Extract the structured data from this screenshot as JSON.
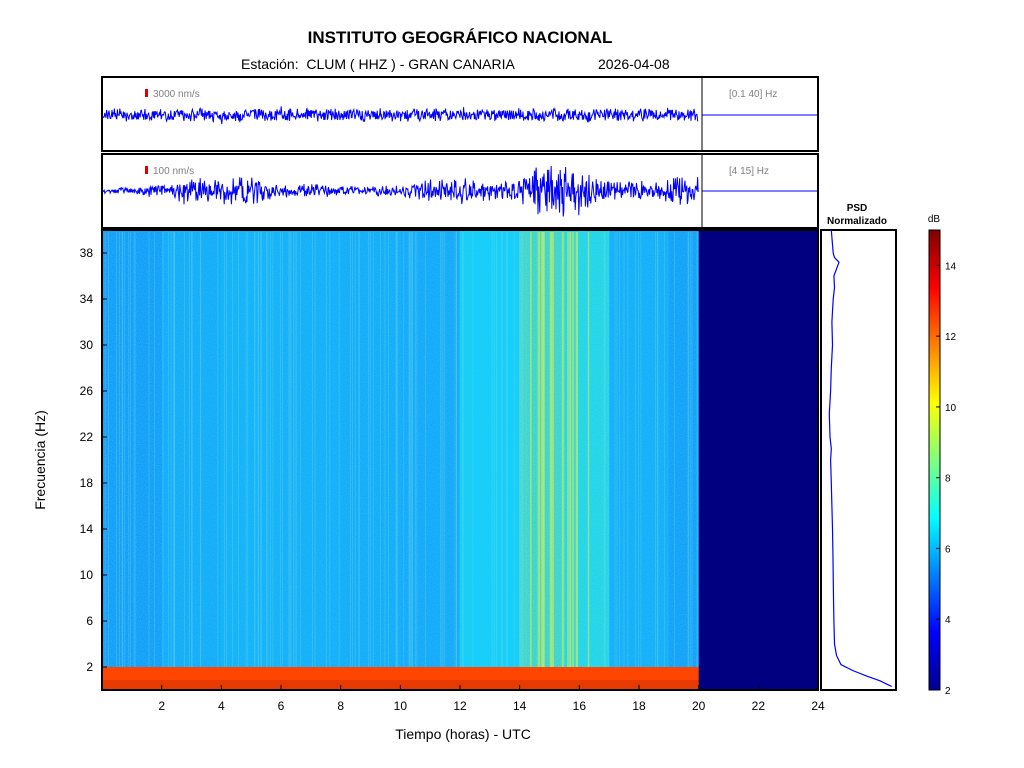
{
  "header": {
    "title": "INSTITUTO GEOGRÁFICO NACIONAL",
    "station_line": "Estación:  CLUM ( HHZ ) - GRAN CANARIA",
    "date": "2026-04-08"
  },
  "chart_data": [
    {
      "type": "line",
      "panel": "seismogram-broadband",
      "scale_label": "3000 nm/s",
      "band_label": "[0.1 40] Hz",
      "data_end_hour": 20,
      "x_range": [
        0,
        24
      ],
      "scale_bar_color": "#e00000",
      "trace_color": "#0000ff"
    },
    {
      "type": "line",
      "panel": "seismogram-filtered",
      "scale_label": "100 nm/s",
      "band_label": "[4 15] Hz",
      "data_end_hour": 20,
      "x_range": [
        0,
        24
      ],
      "amplitude_envelope": [
        {
          "x": 0.0,
          "y": 0.08
        },
        {
          "x": 1.0,
          "y": 0.1
        },
        {
          "x": 2.0,
          "y": 0.25
        },
        {
          "x": 3.0,
          "y": 0.45
        },
        {
          "x": 4.0,
          "y": 0.4
        },
        {
          "x": 5.0,
          "y": 0.5
        },
        {
          "x": 6.0,
          "y": 0.2
        },
        {
          "x": 7.0,
          "y": 0.22
        },
        {
          "x": 8.0,
          "y": 0.18
        },
        {
          "x": 9.0,
          "y": 0.15
        },
        {
          "x": 10.0,
          "y": 0.18
        },
        {
          "x": 11.0,
          "y": 0.35
        },
        {
          "x": 12.0,
          "y": 0.4
        },
        {
          "x": 13.0,
          "y": 0.3
        },
        {
          "x": 14.0,
          "y": 0.45
        },
        {
          "x": 14.8,
          "y": 1.0
        },
        {
          "x": 15.5,
          "y": 0.9
        },
        {
          "x": 16.2,
          "y": 0.7
        },
        {
          "x": 17.0,
          "y": 0.3
        },
        {
          "x": 18.0,
          "y": 0.3
        },
        {
          "x": 19.0,
          "y": 0.35
        },
        {
          "x": 19.6,
          "y": 0.55
        },
        {
          "x": 20.0,
          "y": 0.4
        }
      ]
    },
    {
      "type": "heatmap",
      "panel": "spectrogram",
      "xlabel": "Tiempo (horas) - UTC",
      "ylabel": "Frecuencia  (Hz)",
      "x_range": [
        0,
        24
      ],
      "y_range": [
        0,
        40
      ],
      "x_ticks": [
        2,
        4,
        6,
        8,
        10,
        12,
        14,
        16,
        18,
        20,
        22,
        24
      ],
      "y_ticks": [
        2,
        6,
        10,
        14,
        18,
        22,
        26,
        30,
        34,
        38
      ],
      "data_end_hour": 20,
      "no_data_color": "#000080",
      "intensity_by_hour": [
        {
          "x": 0,
          "db": 5.6
        },
        {
          "x": 2,
          "db": 5.8
        },
        {
          "x": 4,
          "db": 6.2
        },
        {
          "x": 6,
          "db": 6.0
        },
        {
          "x": 8,
          "db": 6.1
        },
        {
          "x": 10,
          "db": 5.9
        },
        {
          "x": 12,
          "db": 6.0
        },
        {
          "x": 14,
          "db": 7.4
        },
        {
          "x": 15.5,
          "db": 8.2
        },
        {
          "x": 17,
          "db": 6.3
        },
        {
          "x": 19,
          "db": 5.8
        },
        {
          "x": 20,
          "db": 5.7
        }
      ],
      "low_freq_band": {
        "from_hz": 0,
        "to_hz": 2,
        "db": 12.5
      }
    },
    {
      "type": "line",
      "panel": "psd",
      "title_line1": "PSD",
      "title_line2": "Normalizado",
      "y_range": [
        0,
        40
      ],
      "profile": [
        {
          "freq": 0.3,
          "value": 0.98
        },
        {
          "freq": 0.8,
          "value": 0.8
        },
        {
          "freq": 1.2,
          "value": 0.6
        },
        {
          "freq": 1.7,
          "value": 0.38
        },
        {
          "freq": 2.2,
          "value": 0.2
        },
        {
          "freq": 3.0,
          "value": 0.13
        },
        {
          "freq": 4.0,
          "value": 0.1
        },
        {
          "freq": 6.0,
          "value": 0.09
        },
        {
          "freq": 8.0,
          "value": 0.085
        },
        {
          "freq": 10.0,
          "value": 0.08
        },
        {
          "freq": 12.0,
          "value": 0.075
        },
        {
          "freq": 14.0,
          "value": 0.07
        },
        {
          "freq": 16.0,
          "value": 0.06
        },
        {
          "freq": 18.0,
          "value": 0.05
        },
        {
          "freq": 20.0,
          "value": 0.04
        },
        {
          "freq": 21.0,
          "value": 0.05
        },
        {
          "freq": 22.0,
          "value": 0.03
        },
        {
          "freq": 24.0,
          "value": 0.02
        },
        {
          "freq": 26.0,
          "value": 0.04
        },
        {
          "freq": 28.0,
          "value": 0.05
        },
        {
          "freq": 30.0,
          "value": 0.07
        },
        {
          "freq": 32.0,
          "value": 0.06
        },
        {
          "freq": 34.0,
          "value": 0.08
        },
        {
          "freq": 35.0,
          "value": 0.1
        },
        {
          "freq": 36.0,
          "value": 0.09
        },
        {
          "freq": 37.2,
          "value": 0.17
        },
        {
          "freq": 37.6,
          "value": 0.1
        },
        {
          "freq": 38.0,
          "value": 0.08
        },
        {
          "freq": 40.0,
          "value": 0.05
        }
      ]
    },
    {
      "type": "heatmap",
      "panel": "colorbar",
      "unit_label": "dB",
      "range": [
        2,
        15
      ],
      "ticks": [
        2,
        4,
        6,
        8,
        10,
        12,
        14
      ]
    }
  ]
}
